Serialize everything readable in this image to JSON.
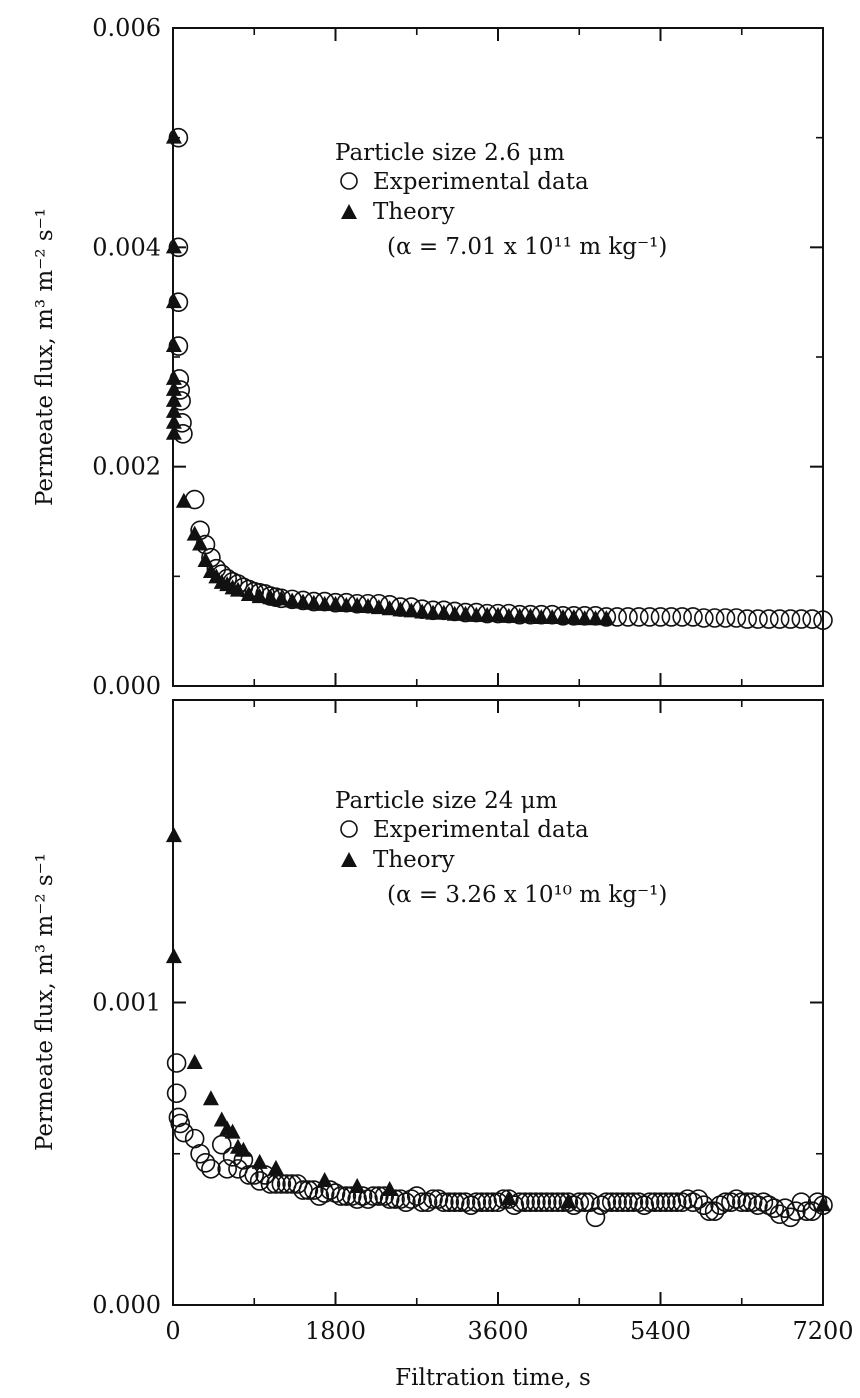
{
  "figure": {
    "xlabel": "Filtration time, s"
  },
  "chart_data": [
    {
      "type": "scatter",
      "ylabel": "Permeate flux, m³ m⁻² s⁻¹",
      "xlim": [
        0,
        7200
      ],
      "ylim": [
        0,
        0.006
      ],
      "xticks": [
        "0",
        "1800",
        "3600",
        "5400",
        "7200"
      ],
      "yticks": [
        "0.000",
        "0.002",
        "0.004",
        "0.006"
      ],
      "legend": {
        "placement": "upper-right",
        "title": "Particle size 2.6 μm",
        "exp_label": "Experimental data",
        "theory_label": "Theory",
        "alpha_text": "(α = 7.01 x 10¹¹ m kg⁻¹)"
      },
      "series": [
        {
          "name": "Experimental data",
          "marker": "open-circle",
          "x": [
            60,
            60,
            60,
            60,
            70,
            80,
            90,
            100,
            110,
            240,
            300,
            360,
            420,
            480,
            540,
            600,
            660,
            720,
            780,
            840,
            900,
            960,
            1020,
            1080,
            1140,
            1200,
            1320,
            1440,
            1560,
            1680,
            1800,
            1920,
            2040,
            2160,
            2280,
            2400,
            2520,
            2640,
            2760,
            2880,
            3000,
            3120,
            3240,
            3360,
            3480,
            3600,
            3720,
            3840,
            3960,
            4080,
            4200,
            4320,
            4440,
            4560,
            4680,
            4800,
            4920,
            5040,
            5160,
            5280,
            5400,
            5520,
            5640,
            5760,
            5880,
            6000,
            6120,
            6240,
            6360,
            6480,
            6600,
            6720,
            6840,
            6960,
            7080,
            7200
          ],
          "y": [
            0.005,
            0.004,
            0.0035,
            0.0031,
            0.0028,
            0.0027,
            0.0026,
            0.0024,
            0.0023,
            0.0017,
            0.00142,
            0.00129,
            0.00117,
            0.00107,
            0.00102,
            0.00098,
            0.00095,
            0.00093,
            0.0009,
            0.00088,
            0.00086,
            0.00085,
            0.00084,
            0.00082,
            0.00081,
            0.0008,
            0.00079,
            0.00078,
            0.00077,
            0.00077,
            0.00076,
            0.00076,
            0.00075,
            0.00075,
            0.00075,
            0.00074,
            0.00072,
            0.00072,
            0.0007,
            0.00069,
            0.00069,
            0.00068,
            0.00067,
            0.00067,
            0.00066,
            0.00066,
            0.00066,
            0.00065,
            0.00065,
            0.00065,
            0.00065,
            0.00064,
            0.00064,
            0.00064,
            0.00064,
            0.00063,
            0.00063,
            0.00063,
            0.00063,
            0.00063,
            0.00063,
            0.00063,
            0.00063,
            0.00063,
            0.00062,
            0.00062,
            0.00062,
            0.00062,
            0.00061,
            0.00061,
            0.00061,
            0.00061,
            0.00061,
            0.00061,
            0.00061,
            0.0006
          ]
        },
        {
          "name": "Theory",
          "marker": "filled-triangle",
          "x": [
            10,
            10,
            10,
            10,
            10,
            10,
            10,
            10,
            10,
            10,
            120,
            240,
            300,
            360,
            420,
            480,
            540,
            600,
            660,
            720,
            840,
            960,
            1080,
            1200,
            1320,
            1440,
            1560,
            1680,
            1800,
            1920,
            2040,
            2160,
            2280,
            2400,
            2520,
            2640,
            2760,
            2880,
            3000,
            3120,
            3240,
            3360,
            3480,
            3600,
            3720,
            3840,
            3960,
            4080,
            4200,
            4320,
            4440,
            4560,
            4680,
            4800
          ],
          "y": [
            0.005,
            0.004,
            0.0035,
            0.0031,
            0.0028,
            0.0027,
            0.0026,
            0.0025,
            0.0024,
            0.0023,
            0.00168,
            0.00138,
            0.00129,
            0.00114,
            0.00104,
            0.00099,
            0.00094,
            0.00092,
            0.00089,
            0.00087,
            0.00083,
            0.00081,
            0.0008,
            0.00079,
            0.00077,
            0.00076,
            0.00075,
            0.00074,
            0.00074,
            0.00073,
            0.00073,
            0.00072,
            0.00071,
            0.0007,
            0.00069,
            0.00068,
            0.00067,
            0.00066,
            0.00066,
            0.00065,
            0.00065,
            0.00064,
            0.00064,
            0.00064,
            0.00063,
            0.00063,
            0.00063,
            0.00062,
            0.00062,
            0.00062,
            0.00062,
            0.00061,
            0.00061,
            0.00061
          ]
        }
      ]
    },
    {
      "type": "scatter",
      "ylabel": "Permeate flux, m³ m⁻² s⁻¹",
      "xlim": [
        0,
        7200
      ],
      "ylim": [
        0,
        0.002
      ],
      "xticks": [
        "0",
        "1800",
        "3600",
        "5400",
        "7200"
      ],
      "yticks": [
        "0.000",
        "0.001"
      ],
      "legend": {
        "placement": "upper-right",
        "title": "Particle size 24 μm",
        "exp_label": "Experimental data",
        "theory_label": "Theory",
        "alpha_text": "(α = 3.26 x 10¹⁰ m kg⁻¹)"
      },
      "series": [
        {
          "name": "Experimental data",
          "marker": "open-circle",
          "x": [
            40,
            40,
            60,
            80,
            120,
            240,
            300,
            360,
            420,
            540,
            600,
            660,
            720,
            780,
            840,
            900,
            960,
            1020,
            1080,
            1140,
            1200,
            1260,
            1320,
            1380,
            1440,
            1500,
            1560,
            1620,
            1680,
            1740,
            1800,
            1860,
            1920,
            1980,
            2040,
            2100,
            2160,
            2220,
            2280,
            2340,
            2400,
            2460,
            2520,
            2580,
            2640,
            2700,
            2760,
            2820,
            2880,
            2940,
            3000,
            3060,
            3120,
            3180,
            3240,
            3300,
            3360,
            3420,
            3480,
            3540,
            3600,
            3660,
            3720,
            3780,
            3840,
            3900,
            3960,
            4020,
            4080,
            4140,
            4200,
            4260,
            4320,
            4380,
            4440,
            4500,
            4560,
            4620,
            4680,
            4740,
            4800,
            4860,
            4920,
            4980,
            5040,
            5100,
            5160,
            5220,
            5280,
            5340,
            5400,
            5460,
            5520,
            5580,
            5640,
            5700,
            5760,
            5820,
            5880,
            5940,
            6000,
            6060,
            6120,
            6180,
            6240,
            6300,
            6360,
            6420,
            6480,
            6540,
            6600,
            6660,
            6720,
            6780,
            6840,
            6900,
            6960,
            7020,
            7080,
            7140,
            7200
          ],
          "y": [
            0.0008,
            0.0007,
            0.00062,
            0.0006,
            0.00057,
            0.00055,
            0.0005,
            0.00047,
            0.00045,
            0.00053,
            0.00045,
            0.00049,
            0.00045,
            0.00048,
            0.00043,
            0.00043,
            0.00041,
            0.00043,
            0.0004,
            0.0004,
            0.0004,
            0.0004,
            0.0004,
            0.0004,
            0.00038,
            0.00038,
            0.00038,
            0.00036,
            0.00037,
            0.00038,
            0.00037,
            0.00036,
            0.00036,
            0.00036,
            0.00035,
            0.00036,
            0.00035,
            0.00036,
            0.00036,
            0.00036,
            0.00035,
            0.00035,
            0.00035,
            0.00034,
            0.00035,
            0.00036,
            0.00034,
            0.00034,
            0.00035,
            0.00035,
            0.00034,
            0.00034,
            0.00034,
            0.00034,
            0.00034,
            0.00033,
            0.00034,
            0.00034,
            0.00034,
            0.00034,
            0.00034,
            0.00035,
            0.00035,
            0.00033,
            0.00034,
            0.00034,
            0.00034,
            0.00034,
            0.00034,
            0.00034,
            0.00034,
            0.00034,
            0.00034,
            0.00034,
            0.00033,
            0.00034,
            0.00034,
            0.00034,
            0.00029,
            0.00033,
            0.00034,
            0.00034,
            0.00034,
            0.00034,
            0.00034,
            0.00034,
            0.00034,
            0.00033,
            0.00034,
            0.00034,
            0.00034,
            0.00034,
            0.00034,
            0.00034,
            0.00034,
            0.00035,
            0.00034,
            0.00035,
            0.00033,
            0.00031,
            0.00031,
            0.00033,
            0.00034,
            0.00034,
            0.00035,
            0.00034,
            0.00034,
            0.00034,
            0.00033,
            0.00034,
            0.00033,
            0.00032,
            0.0003,
            0.00032,
            0.00029,
            0.00031,
            0.00034,
            0.00031,
            0.00031,
            0.00034,
            0.00033
          ]
        },
        {
          "name": "Theory",
          "marker": "filled-triangle",
          "x": [
            10,
            10,
            240,
            420,
            540,
            600,
            660,
            720,
            780,
            960,
            1140,
            1680,
            2040,
            2400,
            3720,
            4380,
            7200
          ],
          "y": [
            0.00155,
            0.00115,
            0.0008,
            0.00068,
            0.00061,
            0.00058,
            0.00057,
            0.00052,
            0.00051,
            0.00047,
            0.00045,
            0.00041,
            0.00039,
            0.00038,
            0.00035,
            0.00034,
            0.00033
          ]
        }
      ]
    }
  ]
}
